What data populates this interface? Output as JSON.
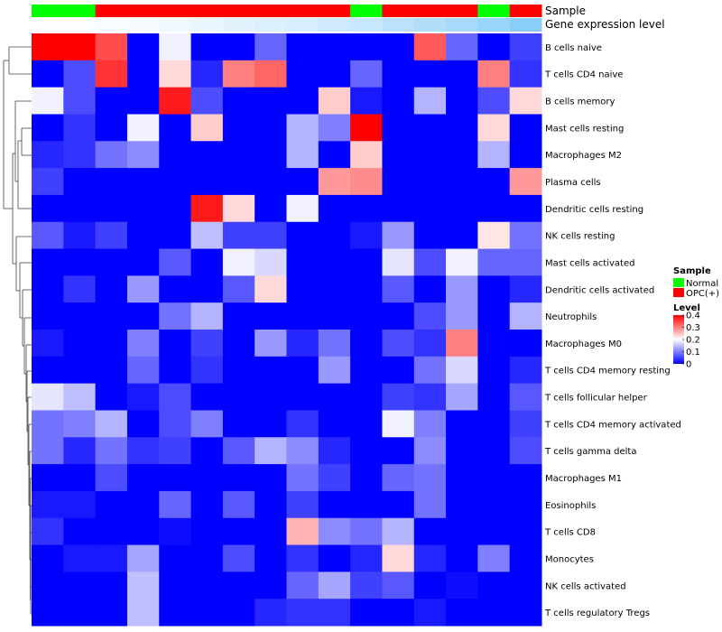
{
  "chart_data": {
    "type": "heatmap",
    "title": "",
    "rows": [
      "B cells naive",
      "T cells CD4 naive",
      "B cells memory",
      "Mast cells resting",
      "Macrophages M2",
      "Plasma cells",
      "Dendritic cells resting",
      "NK cells resting",
      "Mast cells activated",
      "Dendritic cells activated",
      "Neutrophils",
      "Macrophages M0",
      "T cells CD4 memory resting",
      "T cells follicular helper",
      "T cells CD4 memory activated",
      "T cells gamma delta",
      "Macrophages M1",
      "Eosinophils",
      "T cells CD8",
      "Monocytes",
      "NK cells activated",
      "T cells regulatory  Tregs"
    ],
    "column_count": 16,
    "values": [
      [
        0.4,
        0.4,
        0.34,
        0,
        0.19,
        0,
        0,
        0.08,
        0,
        0,
        0,
        0,
        0.33,
        0.08,
        0,
        0.05
      ],
      [
        0,
        0.06,
        0.36,
        0,
        0.23,
        0.03,
        0.3,
        0.32,
        0,
        0,
        0.08,
        0,
        0,
        0,
        0.3,
        0.04
      ],
      [
        0.19,
        0.06,
        0,
        0,
        0.38,
        0.06,
        0,
        0,
        0,
        0.24,
        0.02,
        0,
        0.14,
        0,
        0.06,
        0.23
      ],
      [
        0,
        0.04,
        0,
        0.19,
        0,
        0.24,
        0,
        0,
        0.14,
        0.1,
        0.4,
        0,
        0,
        0,
        0.23,
        0
      ],
      [
        0.03,
        0.04,
        0.09,
        0.11,
        0,
        0,
        0,
        0,
        0.14,
        0,
        0.24,
        0,
        0,
        0,
        0.14,
        0
      ],
      [
        0.05,
        0,
        0,
        0,
        0,
        0,
        0,
        0,
        0,
        0.28,
        0.29,
        0,
        0,
        0,
        0,
        0.28
      ],
      [
        0,
        0,
        0,
        0,
        0,
        0.38,
        0.23,
        0,
        0.19,
        0,
        0,
        0,
        0,
        0,
        0,
        0
      ],
      [
        0.07,
        0.02,
        0.05,
        0,
        0,
        0.15,
        0.05,
        0.05,
        0,
        0,
        0.02,
        0.12,
        0,
        0,
        0.22,
        0.09
      ],
      [
        0,
        0,
        0,
        0,
        0.07,
        0,
        0.19,
        0.17,
        0,
        0,
        0,
        0.18,
        0.06,
        0.19,
        0.08,
        0.08
      ],
      [
        0,
        0.04,
        0,
        0.12,
        0,
        0,
        0.07,
        0.23,
        0,
        0,
        0,
        0.07,
        0,
        0.12,
        0,
        0.03
      ],
      [
        0,
        0,
        0,
        0,
        0.09,
        0.14,
        0,
        0,
        0,
        0,
        0,
        0,
        0.06,
        0.12,
        0,
        0.14
      ],
      [
        0.02,
        0,
        0,
        0.1,
        0,
        0.05,
        0,
        0.12,
        0.03,
        0.09,
        0,
        0.06,
        0.04,
        0.3,
        0,
        0
      ],
      [
        0,
        0,
        0,
        0.08,
        0,
        0.04,
        0,
        0,
        0,
        0.12,
        0,
        0,
        0.09,
        0.17,
        0,
        0.03
      ],
      [
        0.18,
        0.15,
        0,
        0.02,
        0.06,
        0,
        0,
        0,
        0,
        0,
        0,
        0.05,
        0.04,
        0.13,
        0,
        0.07
      ],
      [
        0.09,
        0.1,
        0.14,
        0,
        0.06,
        0.1,
        0,
        0,
        0.04,
        0,
        0,
        0.19,
        0.1,
        0,
        0,
        0.05
      ],
      [
        0.09,
        0.03,
        0.09,
        0.04,
        0.05,
        0,
        0.07,
        0.14,
        0.11,
        0.03,
        0,
        0,
        0.11,
        0,
        0,
        0.06
      ],
      [
        0,
        0,
        0.06,
        0,
        0,
        0,
        0,
        0,
        0.09,
        0.05,
        0,
        0.08,
        0.09,
        0,
        0,
        0
      ],
      [
        0.02,
        0.02,
        0,
        0,
        0.08,
        0,
        0.07,
        0,
        0.05,
        0,
        0,
        0,
        0.09,
        0,
        0,
        0
      ],
      [
        0.04,
        0,
        0,
        0,
        0.01,
        0,
        0,
        0,
        0.26,
        0.11,
        0.09,
        0.14,
        0,
        0,
        0,
        0
      ],
      [
        0,
        0.02,
        0.02,
        0.13,
        0,
        0,
        0.06,
        0,
        0.04,
        0,
        0.03,
        0.23,
        0.03,
        0,
        0.1,
        0
      ],
      [
        0,
        0,
        0,
        0.15,
        0,
        0,
        0,
        0,
        0.08,
        0.13,
        0.05,
        0.07,
        0,
        0.01,
        0,
        0
      ],
      [
        0,
        0,
        0,
        0.15,
        0,
        0,
        0,
        0.03,
        0.04,
        0.04,
        0,
        0,
        0.02,
        0,
        0,
        0
      ]
    ],
    "sample_annotation": {
      "label": "Sample",
      "values": [
        "Normal",
        "Normal",
        "OPC(+)",
        "OPC(+)",
        "OPC(+)",
        "OPC(+)",
        "OPC(+)",
        "OPC(+)",
        "OPC(+)",
        "OPC(+)",
        "Normal",
        "OPC(+)",
        "OPC(+)",
        "OPC(+)",
        "Normal",
        "OPC(+)"
      ]
    },
    "expression_annotation": {
      "label": "Gene expression level",
      "values": [
        0.01,
        0.02,
        0.04,
        0.06,
        0.1,
        0.13,
        0.17,
        0.21,
        0.25,
        0.3,
        0.35,
        0.41,
        0.47,
        0.54,
        0.62,
        0.72
      ]
    },
    "legend": {
      "sample_title": "Sample",
      "sample_entries": [
        {
          "label": "Normal",
          "color": "#00ff00"
        },
        {
          "label": "OPC(+)",
          "color": "#ff0000"
        }
      ],
      "level_title": "Level",
      "level_ticks": [
        "0.4",
        "0.3",
        "0.2",
        "0.1",
        "0"
      ],
      "level_range": [
        0,
        0.4
      ]
    },
    "colors": {
      "low": "#0000ff",
      "mid": "#ffffff",
      "high": "#ff0000",
      "expr_low": "#ffffff",
      "expr_high": "#5bb9f5"
    },
    "placement": "legend right"
  }
}
